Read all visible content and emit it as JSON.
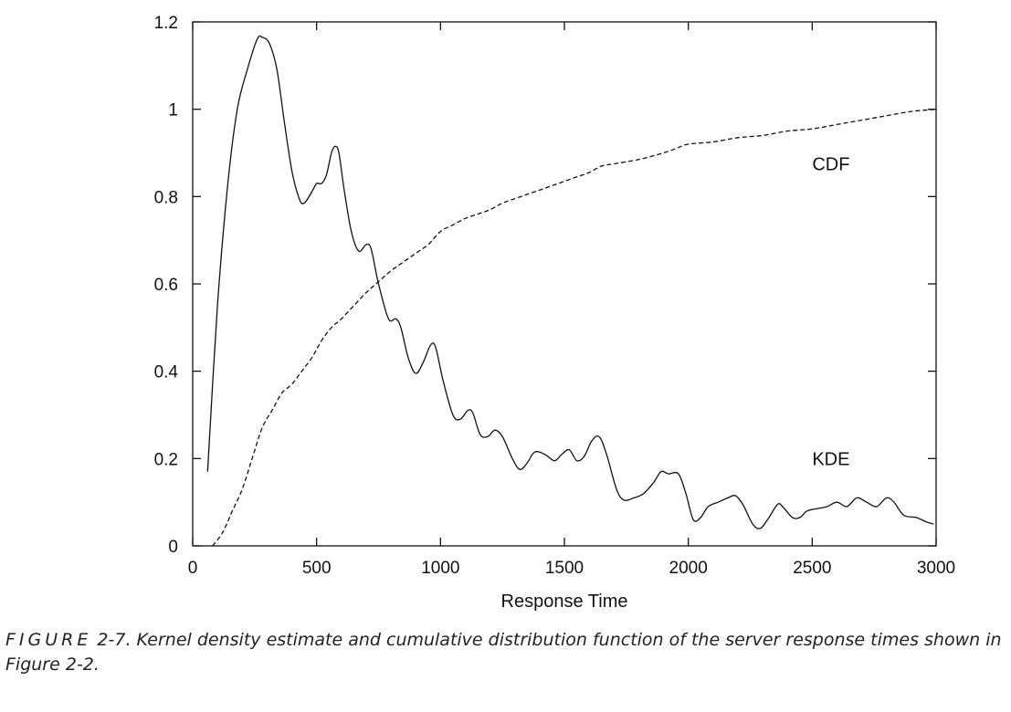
{
  "chart_data": {
    "type": "line",
    "title": "",
    "xlabel": "Response Time",
    "ylabel": "",
    "xlim": [
      0,
      3000
    ],
    "ylim": [
      0,
      1.2
    ],
    "x_ticks": [
      0,
      500,
      1000,
      1500,
      2000,
      2500,
      3000
    ],
    "x_tick_labels": [
      "0",
      "500",
      "1000",
      "1500",
      "2000",
      "2500",
      "3000"
    ],
    "y_ticks": [
      0,
      0.2,
      0.4,
      0.6,
      0.8,
      1.0,
      1.2
    ],
    "y_tick_labels": [
      "0",
      "0.2",
      "0.4",
      "0.6",
      "0.8",
      "1",
      "1.2"
    ],
    "grid": false,
    "legend": "none",
    "series": [
      {
        "name": "KDE",
        "style": "solid",
        "color": "#111111",
        "points": [
          [
            60,
            0.17
          ],
          [
            100,
            0.55
          ],
          [
            140,
            0.82
          ],
          [
            180,
            1.0
          ],
          [
            220,
            1.09
          ],
          [
            260,
            1.16
          ],
          [
            280,
            1.165
          ],
          [
            310,
            1.15
          ],
          [
            340,
            1.09
          ],
          [
            370,
            0.97
          ],
          [
            400,
            0.86
          ],
          [
            430,
            0.795
          ],
          [
            450,
            0.785
          ],
          [
            480,
            0.81
          ],
          [
            500,
            0.83
          ],
          [
            520,
            0.83
          ],
          [
            540,
            0.85
          ],
          [
            560,
            0.9
          ],
          [
            575,
            0.915
          ],
          [
            590,
            0.9
          ],
          [
            610,
            0.82
          ],
          [
            640,
            0.72
          ],
          [
            670,
            0.675
          ],
          [
            700,
            0.69
          ],
          [
            720,
            0.68
          ],
          [
            750,
            0.6
          ],
          [
            790,
            0.52
          ],
          [
            820,
            0.52
          ],
          [
            840,
            0.5
          ],
          [
            870,
            0.43
          ],
          [
            900,
            0.395
          ],
          [
            930,
            0.42
          ],
          [
            960,
            0.46
          ],
          [
            980,
            0.455
          ],
          [
            1010,
            0.38
          ],
          [
            1050,
            0.3
          ],
          [
            1080,
            0.29
          ],
          [
            1110,
            0.31
          ],
          [
            1130,
            0.305
          ],
          [
            1160,
            0.255
          ],
          [
            1190,
            0.25
          ],
          [
            1220,
            0.265
          ],
          [
            1250,
            0.25
          ],
          [
            1290,
            0.2
          ],
          [
            1320,
            0.175
          ],
          [
            1350,
            0.19
          ],
          [
            1380,
            0.215
          ],
          [
            1420,
            0.21
          ],
          [
            1460,
            0.195
          ],
          [
            1490,
            0.21
          ],
          [
            1520,
            0.22
          ],
          [
            1550,
            0.195
          ],
          [
            1580,
            0.205
          ],
          [
            1610,
            0.24
          ],
          [
            1640,
            0.25
          ],
          [
            1670,
            0.21
          ],
          [
            1710,
            0.13
          ],
          [
            1740,
            0.105
          ],
          [
            1780,
            0.11
          ],
          [
            1820,
            0.12
          ],
          [
            1860,
            0.145
          ],
          [
            1890,
            0.17
          ],
          [
            1920,
            0.165
          ],
          [
            1960,
            0.165
          ],
          [
            1990,
            0.12
          ],
          [
            2020,
            0.06
          ],
          [
            2050,
            0.065
          ],
          [
            2080,
            0.09
          ],
          [
            2120,
            0.1
          ],
          [
            2160,
            0.11
          ],
          [
            2190,
            0.115
          ],
          [
            2220,
            0.095
          ],
          [
            2260,
            0.05
          ],
          [
            2290,
            0.04
          ],
          [
            2320,
            0.06
          ],
          [
            2360,
            0.095
          ],
          [
            2380,
            0.09
          ],
          [
            2420,
            0.065
          ],
          [
            2450,
            0.065
          ],
          [
            2480,
            0.08
          ],
          [
            2520,
            0.085
          ],
          [
            2560,
            0.09
          ],
          [
            2600,
            0.1
          ],
          [
            2640,
            0.09
          ],
          [
            2680,
            0.11
          ],
          [
            2720,
            0.1
          ],
          [
            2760,
            0.09
          ],
          [
            2800,
            0.11
          ],
          [
            2830,
            0.1
          ],
          [
            2870,
            0.07
          ],
          [
            2920,
            0.065
          ],
          [
            2960,
            0.055
          ],
          [
            2990,
            0.05
          ]
        ]
      },
      {
        "name": "CDF",
        "style": "dashed",
        "color": "#111111",
        "points": [
          [
            80,
            0.0
          ],
          [
            120,
            0.03
          ],
          [
            160,
            0.08
          ],
          [
            200,
            0.13
          ],
          [
            240,
            0.2
          ],
          [
            280,
            0.27
          ],
          [
            320,
            0.31
          ],
          [
            360,
            0.35
          ],
          [
            400,
            0.37
          ],
          [
            440,
            0.4
          ],
          [
            480,
            0.43
          ],
          [
            520,
            0.47
          ],
          [
            560,
            0.5
          ],
          [
            600,
            0.52
          ],
          [
            650,
            0.55
          ],
          [
            700,
            0.58
          ],
          [
            750,
            0.605
          ],
          [
            800,
            0.63
          ],
          [
            850,
            0.65
          ],
          [
            900,
            0.67
          ],
          [
            950,
            0.69
          ],
          [
            1000,
            0.72
          ],
          [
            1050,
            0.735
          ],
          [
            1100,
            0.75
          ],
          [
            1150,
            0.76
          ],
          [
            1200,
            0.77
          ],
          [
            1250,
            0.785
          ],
          [
            1300,
            0.795
          ],
          [
            1350,
            0.805
          ],
          [
            1400,
            0.815
          ],
          [
            1450,
            0.825
          ],
          [
            1500,
            0.835
          ],
          [
            1550,
            0.845
          ],
          [
            1600,
            0.855
          ],
          [
            1650,
            0.87
          ],
          [
            1700,
            0.875
          ],
          [
            1800,
            0.885
          ],
          [
            1900,
            0.9
          ],
          [
            1950,
            0.91
          ],
          [
            2000,
            0.92
          ],
          [
            2100,
            0.925
          ],
          [
            2200,
            0.935
          ],
          [
            2300,
            0.94
          ],
          [
            2400,
            0.95
          ],
          [
            2500,
            0.955
          ],
          [
            2600,
            0.965
          ],
          [
            2700,
            0.975
          ],
          [
            2800,
            0.985
          ],
          [
            2900,
            0.995
          ],
          [
            3000,
            1.0
          ]
        ]
      }
    ],
    "annotations": [
      {
        "text": "CDF",
        "x": 2500,
        "y": 0.875
      },
      {
        "text": "KDE",
        "x": 2500,
        "y": 0.2
      }
    ]
  },
  "caption": {
    "label": "FIGURE",
    "text": " 2-7. Kernel density estimate and cumulative distribution function of the server response times shown in Figure 2-2."
  }
}
